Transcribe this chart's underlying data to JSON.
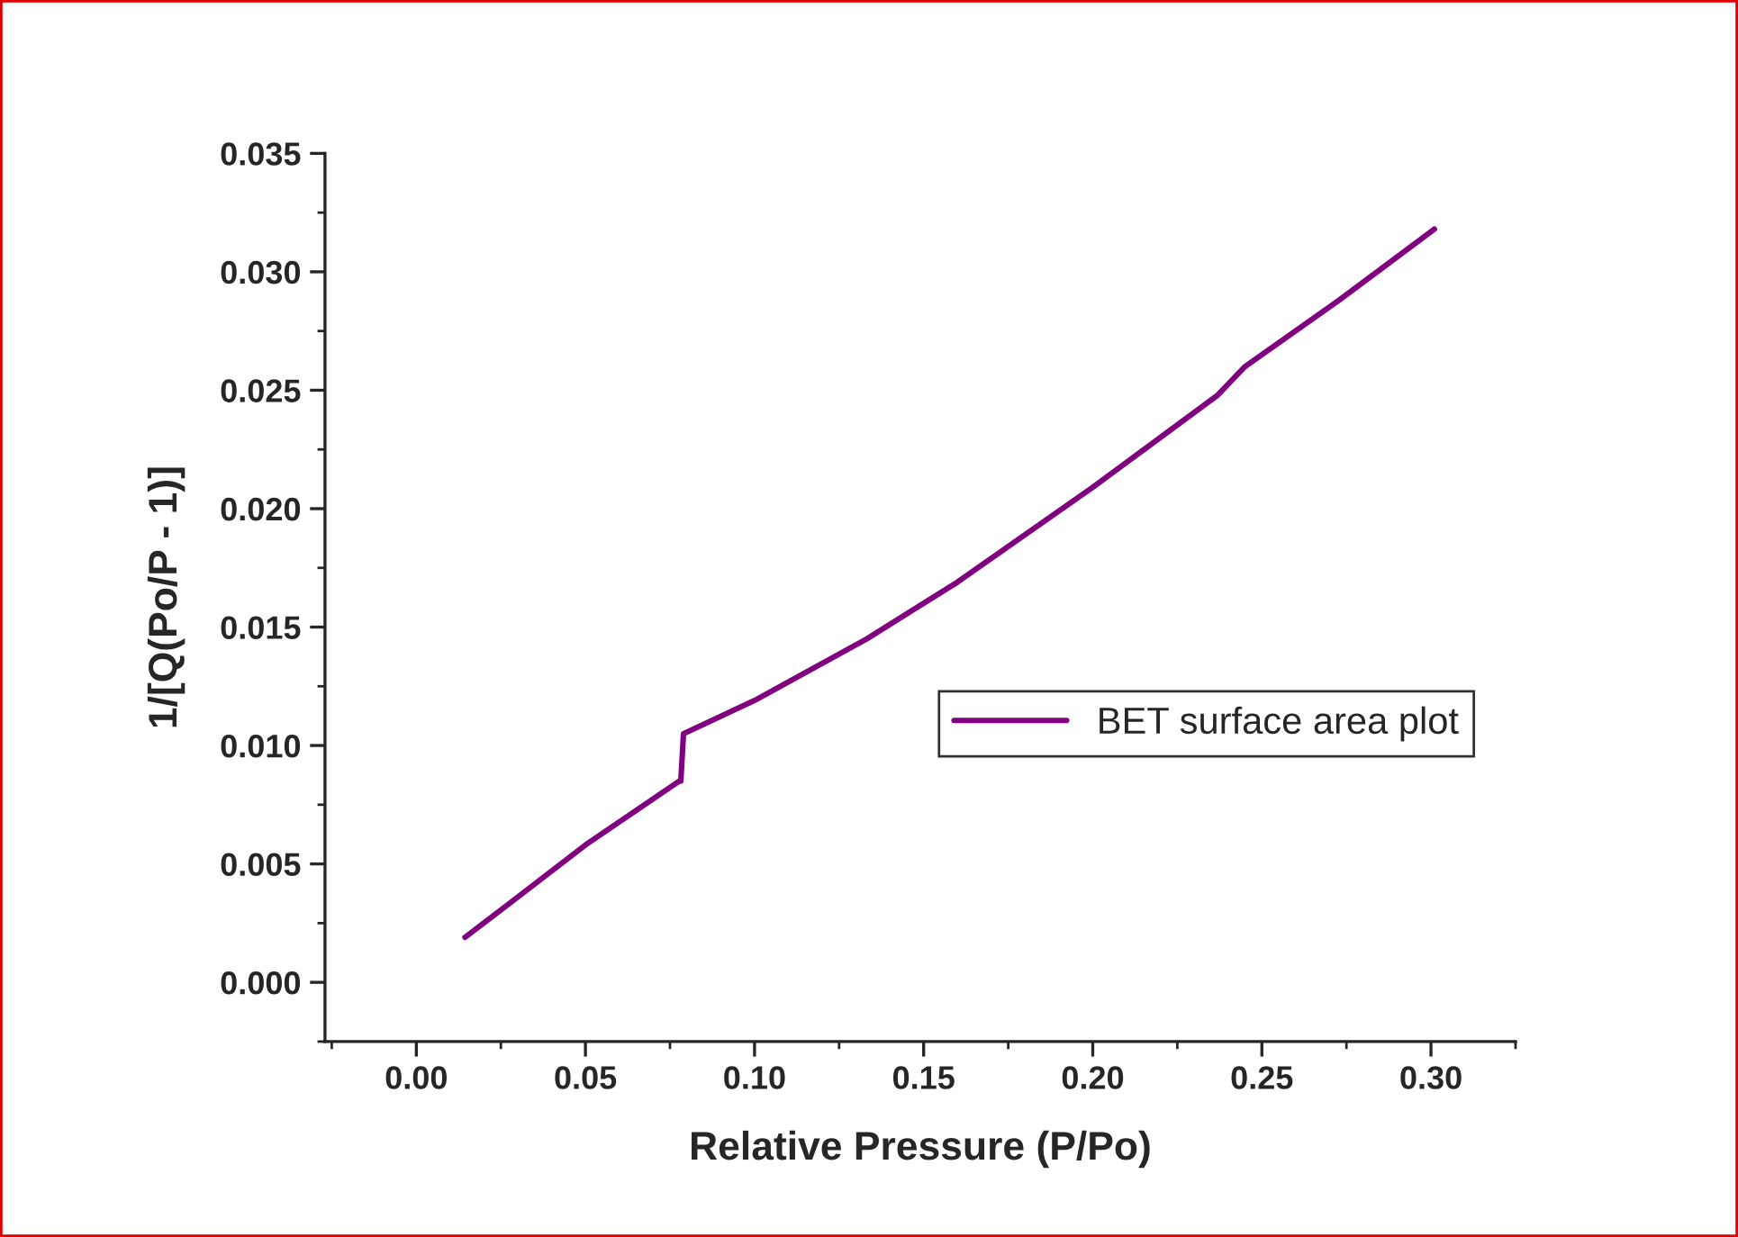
{
  "chart_data": {
    "type": "line",
    "xlabel": "Relative Pressure (P/Po)",
    "ylabel": "1/[Q(Po/P - 1)]",
    "series": [
      {
        "name": "BET surface area plot",
        "color": "#800080",
        "x": [
          0.0144,
          0.03,
          0.05,
          0.0778,
          0.0782,
          0.079,
          0.1,
          0.1332,
          0.16,
          0.2,
          0.237,
          0.245,
          0.2728,
          0.301
        ],
        "values": [
          0.0019,
          0.0036,
          0.0058,
          0.0085,
          0.0085,
          0.0105,
          0.0119,
          0.0145,
          0.0169,
          0.0209,
          0.0248,
          0.026,
          0.0288,
          0.0318
        ]
      }
    ],
    "xlim": [
      -0.027,
      0.325
    ],
    "ylim": [
      -0.0025,
      0.035
    ],
    "xticks": [
      {
        "value": 0,
        "label": "0.00"
      },
      {
        "value": 0.05,
        "label": "0.05"
      },
      {
        "value": 0.1,
        "label": "0.10"
      },
      {
        "value": 0.15,
        "label": "0.15"
      },
      {
        "value": 0.2,
        "label": "0.20"
      },
      {
        "value": 0.25,
        "label": "0.25"
      },
      {
        "value": 0.3,
        "label": "0.30"
      }
    ],
    "yticks": [
      {
        "value": 0,
        "label": "0.000"
      },
      {
        "value": 0.005,
        "label": "0.005"
      },
      {
        "value": 0.01,
        "label": "0.010"
      },
      {
        "value": 0.015,
        "label": "0.015"
      },
      {
        "value": 0.02,
        "label": "0.020"
      },
      {
        "value": 0.025,
        "label": "0.025"
      },
      {
        "value": 0.03,
        "label": "0.030"
      },
      {
        "value": 0.035,
        "label": "0.035"
      }
    ],
    "legend": "bottom right",
    "grid": false,
    "marker": "none",
    "line_style": "solid"
  }
}
